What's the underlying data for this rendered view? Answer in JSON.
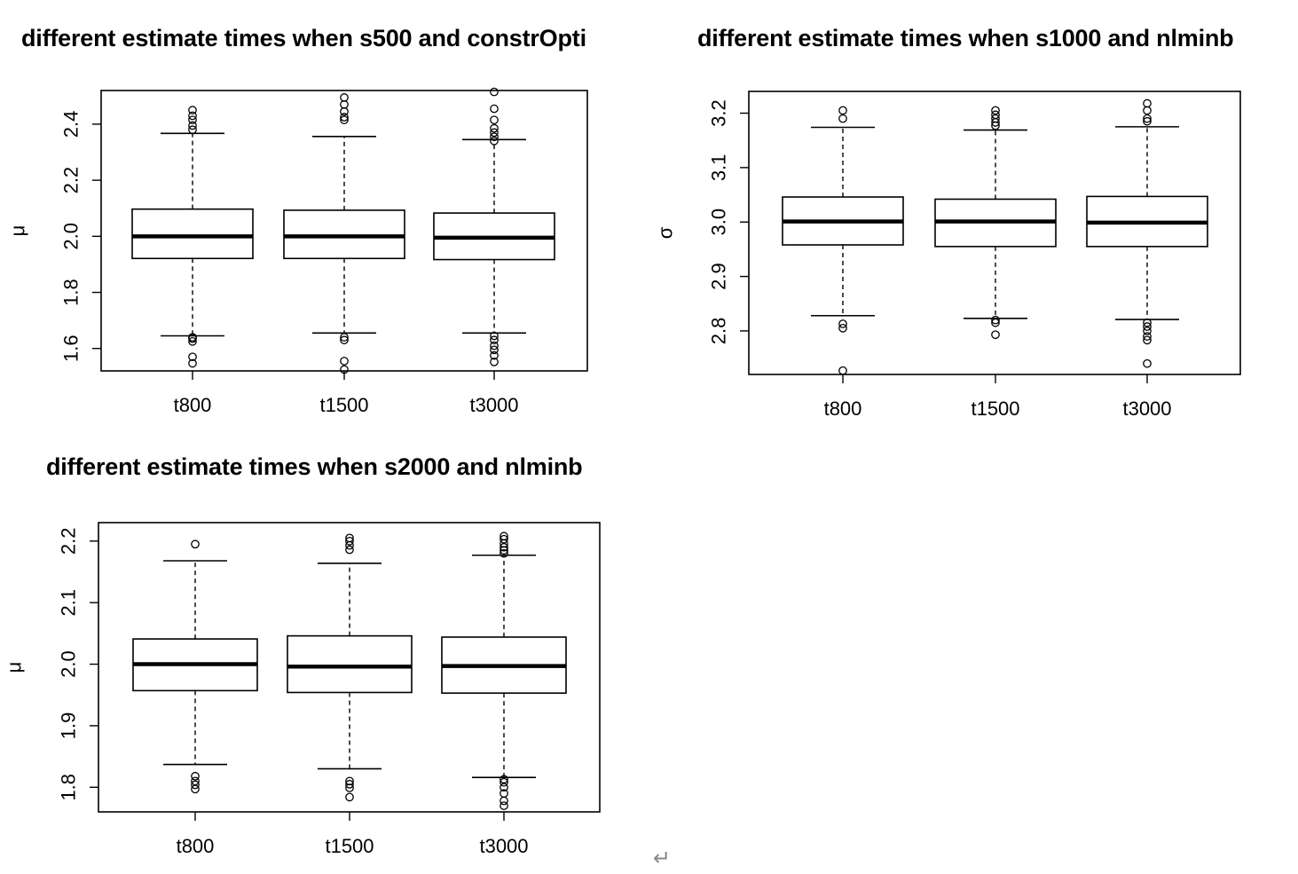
{
  "chart_data": [
    {
      "type": "box",
      "title": "different estimate times when s500 and constrOpti",
      "xlabel": "",
      "ylabel": "μ",
      "ylim": [
        1.52,
        2.52
      ],
      "yticks": [
        "1.6",
        "1.8",
        "2.0",
        "2.2",
        "2.4"
      ],
      "categories": [
        "t800",
        "t1500",
        "t3000"
      ],
      "boxes": [
        {
          "label": "t800",
          "lower_whisker": 1.645,
          "q1": 1.921,
          "median": 2.0,
          "q3": 2.097,
          "upper_whisker": 2.367,
          "outliers": [
            1.547,
            1.57,
            1.625,
            1.635,
            1.64,
            2.38,
            2.395,
            2.415,
            2.43,
            2.45
          ]
        },
        {
          "label": "t1500",
          "lower_whisker": 1.655,
          "q1": 1.921,
          "median": 2.0,
          "q3": 2.093,
          "upper_whisker": 2.356,
          "outliers": [
            1.525,
            1.555,
            1.63,
            1.64,
            2.415,
            2.425,
            2.445,
            2.47,
            2.495
          ]
        },
        {
          "label": "t3000",
          "lower_whisker": 1.655,
          "q1": 1.917,
          "median": 1.995,
          "q3": 2.083,
          "upper_whisker": 2.345,
          "outliers": [
            1.552,
            1.575,
            1.595,
            1.61,
            1.63,
            1.645,
            2.34,
            2.355,
            2.37,
            2.385,
            2.415,
            2.455,
            2.515
          ]
        }
      ]
    },
    {
      "type": "box",
      "title": "different estimate times when s1000 and nlminb",
      "xlabel": "",
      "ylabel": "σ",
      "ylim": [
        2.72,
        3.24
      ],
      "yticks": [
        "2.8",
        "2.9",
        "3.0",
        "3.1",
        "3.2"
      ],
      "categories": [
        "t800",
        "t1500",
        "t3000"
      ],
      "boxes": [
        {
          "label": "t800",
          "lower_whisker": 2.828,
          "q1": 2.958,
          "median": 3.001,
          "q3": 3.046,
          "upper_whisker": 3.174,
          "outliers": [
            2.727,
            2.805,
            2.813,
            3.19,
            3.205
          ]
        },
        {
          "label": "t1500",
          "lower_whisker": 2.823,
          "q1": 2.955,
          "median": 3.001,
          "q3": 3.042,
          "upper_whisker": 3.169,
          "outliers": [
            2.793,
            2.815,
            2.82,
            3.177,
            3.183,
            3.19,
            3.197,
            3.205
          ]
        },
        {
          "label": "t3000",
          "lower_whisker": 2.821,
          "q1": 2.955,
          "median": 2.999,
          "q3": 3.047,
          "upper_whisker": 3.175,
          "outliers": [
            2.74,
            2.783,
            2.79,
            2.8,
            2.808,
            2.815,
            3.185,
            3.19,
            3.205,
            3.218
          ]
        }
      ]
    },
    {
      "type": "box",
      "title": "different estimate times when s2000 and nlminb",
      "xlabel": "",
      "ylabel": "μ",
      "ylim": [
        1.76,
        2.23
      ],
      "yticks": [
        "1.8",
        "1.9",
        "2.0",
        "2.1",
        "2.2"
      ],
      "categories": [
        "t800",
        "t1500",
        "t3000"
      ],
      "boxes": [
        {
          "label": "t800",
          "lower_whisker": 1.837,
          "q1": 1.957,
          "median": 2.0,
          "q3": 2.041,
          "upper_whisker": 2.168,
          "outliers": [
            1.797,
            1.804,
            1.81,
            1.818,
            2.195
          ]
        },
        {
          "label": "t1500",
          "lower_whisker": 1.83,
          "q1": 1.954,
          "median": 1.996,
          "q3": 2.046,
          "upper_whisker": 2.164,
          "outliers": [
            1.784,
            1.799,
            1.805,
            1.81,
            2.186,
            2.193,
            2.2,
            2.205
          ]
        },
        {
          "label": "t3000",
          "lower_whisker": 1.816,
          "q1": 1.953,
          "median": 1.997,
          "q3": 2.044,
          "upper_whisker": 2.177,
          "outliers": [
            1.77,
            1.778,
            1.79,
            1.8,
            1.808,
            1.813,
            2.18,
            2.185,
            2.19,
            2.196,
            2.203,
            2.208
          ]
        }
      ]
    }
  ],
  "return_mark": "↵"
}
